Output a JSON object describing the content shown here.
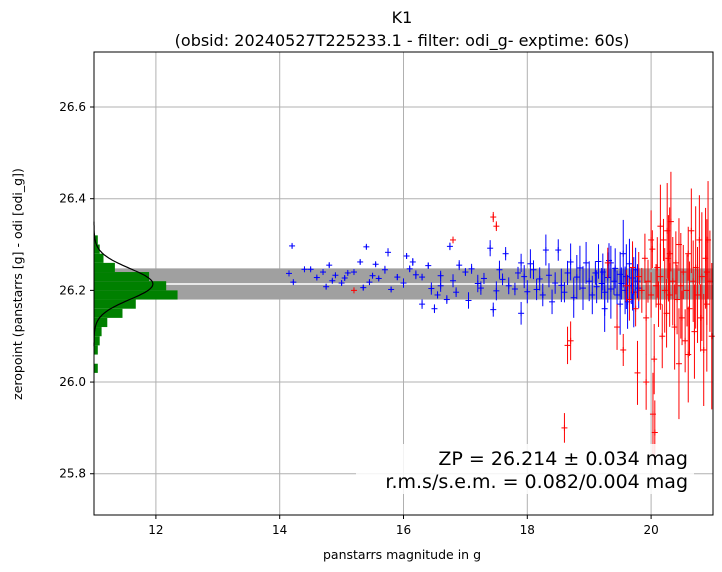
{
  "chart_data": {
    "type": "scatter",
    "title": "K1",
    "subtitle": "(obsid: 20240527T225233.1 - filter: odi_g- exptime: 60s)",
    "xlabel": "panstarrs magnitude in g",
    "ylabel": "zeropoint (panstarrs [g] - odi [odi_g])",
    "xlim": [
      11.0,
      21.0
    ],
    "ylim": [
      25.71,
      26.72
    ],
    "xticks": [
      "12",
      "14",
      "16",
      "18",
      "20"
    ],
    "yticks": [
      "25.8",
      "26.0",
      "26.2",
      "26.4",
      "26.6"
    ],
    "grid": true,
    "zeropoint": 26.214,
    "zp_sigma": 0.034,
    "annotation_line1": "ZP = 26.214 ± 0.034 mag",
    "annotation_line2": "r.m.s/s.e.m. = 0.082/0.004 mag",
    "colors": {
      "used": "#0000ff",
      "rejected": "#ff0000",
      "band": "#a0a0a0",
      "histogram": "#008000",
      "gaussian": "#000000",
      "grid": "#b0b0b0"
    },
    "histogram": {
      "orientation": "horizontal",
      "bins": [
        {
          "y0": 26.02,
          "y1": 26.04,
          "count": 2
        },
        {
          "y0": 26.06,
          "y1": 26.08,
          "count": 2
        },
        {
          "y0": 26.08,
          "y1": 26.1,
          "count": 3
        },
        {
          "y0": 26.1,
          "y1": 26.12,
          "count": 4
        },
        {
          "y0": 26.12,
          "y1": 26.14,
          "count": 7
        },
        {
          "y0": 26.14,
          "y1": 26.16,
          "count": 15
        },
        {
          "y0": 26.16,
          "y1": 26.18,
          "count": 22
        },
        {
          "y0": 26.18,
          "y1": 26.2,
          "count": 44
        },
        {
          "y0": 26.2,
          "y1": 26.22,
          "count": 38
        },
        {
          "y0": 26.22,
          "y1": 26.24,
          "count": 29
        },
        {
          "y0": 26.24,
          "y1": 26.26,
          "count": 11
        },
        {
          "y0": 26.26,
          "y1": 26.28,
          "count": 5
        },
        {
          "y0": 26.28,
          "y1": 26.3,
          "count": 3
        },
        {
          "y0": 26.3,
          "y1": 26.32,
          "count": 2
        }
      ],
      "gaussian": {
        "mean": 26.214,
        "sigma": 0.034,
        "peak": 31
      }
    },
    "series": [
      {
        "name": "",
        "color": "#0000ff",
        "points": [
          [
            14.15,
            26.237
          ],
          [
            14.2,
            26.297
          ],
          [
            14.22,
            26.218
          ],
          [
            14.4,
            26.246
          ],
          [
            14.5,
            26.246
          ],
          [
            14.6,
            26.228
          ],
          [
            14.7,
            26.24
          ],
          [
            14.75,
            26.208
          ],
          [
            14.8,
            26.255
          ],
          [
            14.85,
            26.221
          ],
          [
            14.9,
            26.233
          ],
          [
            15.0,
            26.216
          ],
          [
            15.05,
            26.227
          ],
          [
            15.1,
            26.238
          ],
          [
            15.2,
            26.24
          ],
          [
            15.3,
            26.262
          ],
          [
            15.35,
            26.206
          ],
          [
            15.4,
            26.295
          ],
          [
            15.45,
            26.218
          ],
          [
            15.5,
            26.232
          ],
          [
            15.55,
            26.257
          ],
          [
            15.6,
            26.226
          ],
          [
            15.7,
            26.245
          ],
          [
            15.75,
            26.283
          ],
          [
            15.8,
            26.202
          ],
          [
            15.9,
            26.229
          ],
          [
            16.0,
            26.216
          ],
          [
            16.05,
            26.275
          ],
          [
            16.1,
            26.247
          ],
          [
            16.15,
            26.262
          ],
          [
            16.2,
            26.234
          ],
          [
            16.3,
            26.229
          ],
          [
            16.4,
            26.254
          ],
          [
            16.45,
            26.204
          ],
          [
            16.5,
            26.16
          ],
          [
            16.55,
            26.19
          ],
          [
            16.6,
            26.232
          ],
          [
            16.7,
            26.18
          ],
          [
            16.75,
            26.296
          ],
          [
            16.8,
            26.221
          ],
          [
            16.85,
            26.196
          ],
          [
            16.9,
            26.255
          ],
          [
            17.0,
            26.24
          ],
          [
            17.05,
            26.178
          ],
          [
            17.1,
            26.247
          ],
          [
            17.2,
            26.215
          ],
          [
            17.25,
            26.205
          ],
          [
            17.3,
            26.226
          ],
          [
            17.4,
            26.292
          ],
          [
            17.45,
            26.158
          ],
          [
            17.5,
            26.199
          ],
          [
            17.55,
            26.245
          ],
          [
            17.6,
            26.224
          ],
          [
            17.65,
            26.28
          ],
          [
            17.7,
            26.21
          ],
          [
            17.8,
            26.203
          ],
          [
            17.85,
            26.238
          ],
          [
            17.9,
            26.26
          ],
          [
            17.95,
            26.23
          ],
          [
            18.0,
            26.197
          ],
          [
            18.05,
            26.258
          ],
          [
            18.1,
            26.245
          ],
          [
            18.15,
            26.202
          ],
          [
            18.2,
            26.225
          ],
          [
            18.25,
            26.19
          ],
          [
            18.3,
            26.288
          ],
          [
            18.35,
            26.233
          ],
          [
            18.4,
            26.175
          ],
          [
            18.45,
            26.216
          ],
          [
            18.5,
            26.288
          ],
          [
            18.55,
            26.211
          ],
          [
            18.6,
            26.196
          ],
          [
            18.65,
            26.238
          ],
          [
            18.7,
            26.262
          ],
          [
            18.75,
            26.184
          ],
          [
            18.8,
            26.229
          ],
          [
            18.85,
            26.249
          ],
          [
            18.9,
            26.205
          ],
          [
            18.95,
            26.26
          ],
          [
            19.0,
            26.22
          ],
          [
            19.05,
            26.19
          ],
          [
            19.1,
            26.238
          ],
          [
            19.12,
            26.208
          ],
          [
            19.15,
            26.263
          ],
          [
            19.2,
            26.215
          ],
          [
            19.22,
            26.24
          ],
          [
            19.25,
            26.196
          ],
          [
            19.3,
            26.228
          ],
          [
            19.32,
            26.265
          ],
          [
            19.35,
            26.203
          ],
          [
            19.4,
            26.22
          ],
          [
            19.42,
            26.248
          ],
          [
            19.45,
            26.19
          ],
          [
            19.5,
            26.235
          ],
          [
            19.52,
            26.215
          ],
          [
            19.55,
            26.28
          ],
          [
            19.58,
            26.2
          ],
          [
            19.6,
            26.23
          ],
          [
            19.62,
            26.175
          ],
          [
            19.65,
            26.258
          ],
          [
            19.68,
            26.21
          ],
          [
            19.7,
            26.227
          ],
          [
            19.72,
            26.196
          ],
          [
            19.75,
            26.245
          ],
          [
            19.78,
            26.22
          ],
          [
            19.8,
            26.205
          ],
          [
            16.3,
            26.17
          ],
          [
            17.9,
            26.15
          ],
          [
            19.25,
            26.16
          ],
          [
            19.5,
            26.17
          ],
          [
            19.35,
            26.26
          ],
          [
            16.6,
            26.21
          ]
        ]
      },
      {
        "name": "",
        "color": "#ff0000",
        "points": [
          [
            15.2,
            26.2
          ],
          [
            16.8,
            26.31
          ],
          [
            17.45,
            26.36
          ],
          [
            17.5,
            26.34
          ],
          [
            18.6,
            25.9
          ],
          [
            18.65,
            26.08
          ],
          [
            18.7,
            26.09
          ],
          [
            19.3,
            26.26
          ],
          [
            19.45,
            26.12
          ],
          [
            19.6,
            26.21
          ],
          [
            19.65,
            26.18
          ],
          [
            19.7,
            26.25
          ],
          [
            19.75,
            26.16
          ],
          [
            19.8,
            26.23
          ],
          [
            19.85,
            26.2
          ],
          [
            19.9,
            26.27
          ],
          [
            19.92,
            26.14
          ],
          [
            19.95,
            26.22
          ],
          [
            20.0,
            26.19
          ],
          [
            20.02,
            26.29
          ],
          [
            20.05,
            26.05
          ],
          [
            20.08,
            26.21
          ],
          [
            20.1,
            26.25
          ],
          [
            20.12,
            26.17
          ],
          [
            20.15,
            26.23
          ],
          [
            20.18,
            26.1
          ],
          [
            20.2,
            26.31
          ],
          [
            20.22,
            26.2
          ],
          [
            20.25,
            26.15
          ],
          [
            20.28,
            26.27
          ],
          [
            20.3,
            26.19
          ],
          [
            20.32,
            26.35
          ],
          [
            20.35,
            26.22
          ],
          [
            20.38,
            26.12
          ],
          [
            20.4,
            26.26
          ],
          [
            20.42,
            26.18
          ],
          [
            20.45,
            26.3
          ],
          [
            20.48,
            26.21
          ],
          [
            20.5,
            26.14
          ],
          [
            20.52,
            26.24
          ],
          [
            20.55,
            26.09
          ],
          [
            20.58,
            26.2
          ],
          [
            20.6,
            26.28
          ],
          [
            20.62,
            26.16
          ],
          [
            20.65,
            26.33
          ],
          [
            20.68,
            26.22
          ],
          [
            20.7,
            26.11
          ],
          [
            20.72,
            26.25
          ],
          [
            20.75,
            26.19
          ],
          [
            20.78,
            26.31
          ],
          [
            20.8,
            26.14
          ],
          [
            20.82,
            26.23
          ],
          [
            20.85,
            26.07
          ],
          [
            20.88,
            26.27
          ],
          [
            20.9,
            26.17
          ],
          [
            20.92,
            26.31
          ],
          [
            20.95,
            26.22
          ],
          [
            20.98,
            26.1
          ],
          [
            20.03,
            25.93
          ],
          [
            19.92,
            26.0
          ],
          [
            20.06,
            25.89
          ],
          [
            19.78,
            26.02
          ],
          [
            20.15,
            26.34
          ],
          [
            20.26,
            26.33
          ],
          [
            20.9,
            26.24
          ],
          [
            20.45,
            26.04
          ],
          [
            20.6,
            26.06
          ],
          [
            20.3,
            26.28
          ],
          [
            20.0,
            26.31
          ],
          [
            19.55,
            26.07
          ]
        ]
      }
    ]
  }
}
